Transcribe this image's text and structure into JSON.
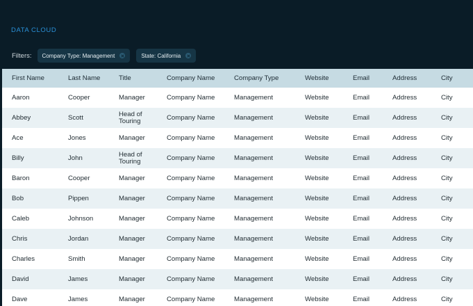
{
  "brand": "DATA CLOUD",
  "filters": {
    "label": "Filters:",
    "chips": [
      "Company Type: Management",
      "State: California"
    ]
  },
  "table": {
    "columns": [
      "First Name",
      "Last Name",
      "Title",
      "Company Name",
      "Company Type",
      "Website",
      "Email",
      "Address",
      "City"
    ],
    "rows": [
      [
        "Aaron",
        "Cooper",
        "Manager",
        "Company Name",
        "Management",
        "Website",
        "Email",
        "Address",
        "City"
      ],
      [
        "Abbey",
        "Scott",
        "Head of Touring",
        "Company Name",
        "Management",
        "Website",
        "Email",
        "Address",
        "City"
      ],
      [
        "Ace",
        "Jones",
        "Manager",
        "Company Name",
        "Management",
        "Website",
        "Email",
        "Address",
        "City"
      ],
      [
        "Billy",
        "John",
        "Head of Touring",
        "Company Name",
        "Management",
        "Website",
        "Email",
        "Address",
        "City"
      ],
      [
        "Baron",
        "Cooper",
        "Manager",
        "Company Name",
        "Management",
        "Website",
        "Email",
        "Address",
        "City"
      ],
      [
        "Bob",
        "Pippen",
        "Manager",
        "Company Name",
        "Management",
        "Website",
        "Email",
        "Address",
        "City"
      ],
      [
        "Caleb",
        "Johnson",
        "Manager",
        "Company Name",
        "Management",
        "Website",
        "Email",
        "Address",
        "City"
      ],
      [
        "Chris",
        "Jordan",
        "Manager",
        "Company Name",
        "Management",
        "Website",
        "Email",
        "Address",
        "City"
      ],
      [
        "Charles",
        "Smith",
        "Manager",
        "Company Name",
        "Management",
        "Website",
        "Email",
        "Address",
        "City"
      ],
      [
        "David",
        "James",
        "Manager",
        "Company Name",
        "Management",
        "Website",
        "Email",
        "Address",
        "City"
      ],
      [
        "Dave",
        "James",
        "Manager",
        "Company Name",
        "Management",
        "Website",
        "Email",
        "Address",
        "City"
      ]
    ]
  },
  "colors": {
    "background": "#0a1c27",
    "brand": "#2a8fd6",
    "chip": "#163545",
    "header_row": "#c6dbe3",
    "alt_row": "#e9f1f4"
  }
}
